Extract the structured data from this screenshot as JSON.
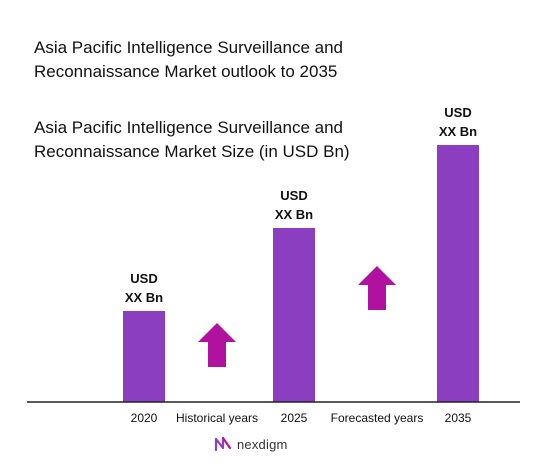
{
  "title": "Asia Pacific Intelligence Surveillance and Reconnaissance Market outlook to 2035",
  "subtitle": "Asia Pacific Intelligence Surveillance and Reconnaissance Market Size (in USD Bn)",
  "brand": {
    "name": "nexdigm"
  },
  "colors": {
    "bar": "#8b3fc0",
    "arrow": "#b0129f",
    "axis": "#222222"
  },
  "chart_data": {
    "type": "bar",
    "categories": [
      "2020",
      "2025",
      "2035"
    ],
    "values": [
      1,
      2,
      3
    ],
    "value_labels": [
      {
        "line1": "USD",
        "line2": "XX Bn"
      },
      {
        "line1": "USD",
        "line2": "XX Bn"
      },
      {
        "line1": "USD",
        "line2": "XX Bn"
      }
    ],
    "period_labels": [
      "Historical years",
      "Forecasted years"
    ],
    "period_arrows": [
      "up-arrow",
      "up-arrow"
    ]
  }
}
